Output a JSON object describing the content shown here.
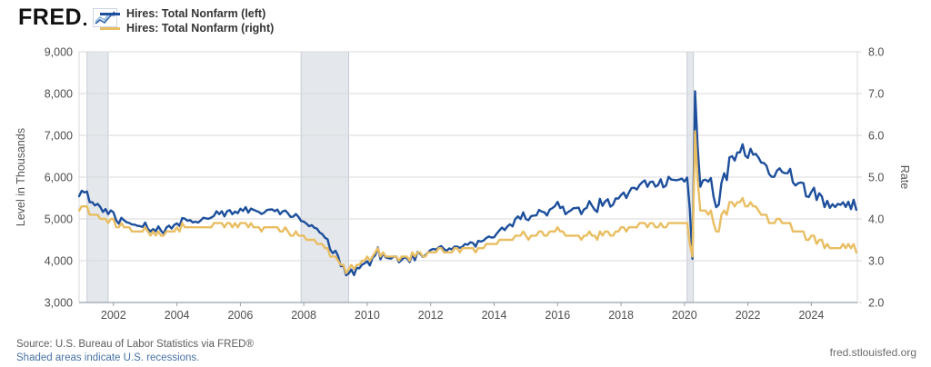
{
  "header": {
    "logo": "FRED",
    "legend": [
      {
        "label": "Hires: Total Nonfarm (left)",
        "color": "#1d4f9c",
        "axis": "left"
      },
      {
        "label": "Hires: Total Nonfarm (right)",
        "color": "#e9be62",
        "axis": "right"
      }
    ]
  },
  "chart_data": {
    "type": "line",
    "frequency": "monthly",
    "x_start": 2000.9167,
    "xlim": [
      2000.9167,
      2025.45
    ],
    "x_ticks": [
      2002,
      2004,
      2006,
      2008,
      2010,
      2012,
      2014,
      2016,
      2018,
      2020,
      2022,
      2024
    ],
    "left_axis": {
      "label": "Level in Thousands",
      "min": 3000,
      "max": 9000,
      "ticks": [
        [
          3000,
          "3,000"
        ],
        [
          4000,
          "4,000"
        ],
        [
          5000,
          "5,000"
        ],
        [
          6000,
          "6,000"
        ],
        [
          7000,
          "7,000"
        ],
        [
          8000,
          "8,000"
        ],
        [
          9000,
          "9,000"
        ]
      ]
    },
    "right_axis": {
      "label": "Rate",
      "min": 2.0,
      "max": 8.0,
      "ticks": [
        [
          2,
          "2.0"
        ],
        [
          3,
          "3.0"
        ],
        [
          4,
          "4.0"
        ],
        [
          5,
          "5.0"
        ],
        [
          6,
          "6.0"
        ],
        [
          7,
          "7.0"
        ],
        [
          8,
          "8.0"
        ]
      ]
    },
    "recessions": [
      [
        2001.167,
        2001.833
      ],
      [
        2007.917,
        2009.417
      ],
      [
        2020.083,
        2020.283
      ]
    ],
    "grid_on": true,
    "legend_position": "top-left",
    "series": [
      {
        "name": "Hires: Total Nonfarm (left)",
        "axis": "left",
        "color": "#1d4f9c",
        "values": [
          5543,
          5675,
          5633,
          5654,
          5399,
          5401,
          5323,
          5361,
          5286,
          5168,
          5236,
          5112,
          5204,
          5156,
          4969,
          4884,
          5029,
          4968,
          4921,
          4902,
          4868,
          4862,
          4838,
          4828,
          4809,
          4912,
          4766,
          4699,
          4757,
          4707,
          4822,
          4719,
          4646,
          4793,
          4839,
          4769,
          4858,
          4894,
          4832,
          5020,
          5007,
          4954,
          4972,
          4917,
          4935,
          4913,
          4963,
          5028,
          5012,
          5005,
          5032,
          5075,
          5185,
          5115,
          5184,
          5061,
          5184,
          5210,
          5113,
          5176,
          5137,
          5244,
          5192,
          5283,
          5149,
          5248,
          5218,
          5192,
          5165,
          5120,
          5147,
          5210,
          5225,
          5229,
          5185,
          5225,
          5114,
          5180,
          5203,
          5134,
          5047,
          5055,
          5118,
          5049,
          4949,
          4936,
          4886,
          4826,
          4849,
          4789,
          4765,
          4673,
          4636,
          4549,
          4512,
          4266,
          4180,
          4239,
          4110,
          3868,
          3878,
          3653,
          3695,
          3790,
          3655,
          3832,
          3818,
          3905,
          3937,
          3990,
          3887,
          4069,
          4129,
          4317,
          4035,
          4178,
          4078,
          4060,
          4049,
          4098,
          4099,
          3963,
          4020,
          4078,
          4061,
          3968,
          4148,
          4010,
          4210,
          4169,
          4093,
          4131,
          4200,
          4259,
          4282,
          4266,
          4317,
          4350,
          4280,
          4237,
          4293,
          4272,
          4339,
          4339,
          4309,
          4334,
          4400,
          4382,
          4441,
          4424,
          4337,
          4476,
          4459,
          4482,
          4543,
          4580,
          4554,
          4561,
          4650,
          4727,
          4794,
          4733,
          4817,
          4872,
          4821,
          5000,
          5061,
          4998,
          5157,
          4996,
          4970,
          5067,
          5081,
          5085,
          5216,
          5176,
          5158,
          5082,
          5222,
          5258,
          5307,
          5408,
          5261,
          5293,
          5111,
          5165,
          5203,
          5256,
          5261,
          5269,
          5116,
          5231,
          5265,
          5427,
          5317,
          5222,
          5168,
          5480,
          5312,
          5420,
          5471,
          5294,
          5342,
          5492,
          5490,
          5571,
          5633,
          5500,
          5634,
          5742,
          5745,
          5704,
          5811,
          5877,
          5921,
          5767,
          5882,
          5895,
          5771,
          5810,
          5947,
          5757,
          5797,
          6009,
          5941,
          5933,
          5927,
          5942,
          5966,
          5894,
          5991,
          5242,
          4047,
          8056,
          6700,
          5771,
          5923,
          5939,
          5892,
          5979,
          5539,
          5280,
          5341,
          5858,
          6093,
          5930,
          6471,
          6503,
          6396,
          6592,
          6592,
          6786,
          6512,
          6461,
          6678,
          6536,
          6556,
          6468,
          6350,
          6339,
          6276,
          6076,
          6006,
          6011,
          6156,
          6211,
          6122,
          6095,
          6093,
          6197,
          5875,
          5800,
          5854,
          5871,
          5859,
          5541,
          5525,
          5645,
          5747,
          5453,
          5615,
          5537,
          5283,
          5432,
          5265,
          5353,
          5282,
          5361,
          5338,
          5398,
          5288,
          5411,
          5235,
          5458,
          5217
        ]
      },
      {
        "name": "Hires: Total Nonfarm (right)",
        "axis": "right",
        "color": "#e9be62",
        "values": [
          4.2,
          4.3,
          4.3,
          4.3,
          4.1,
          4.1,
          4.1,
          4.1,
          4.0,
          4.0,
          4.0,
          3.9,
          4.0,
          4.0,
          3.8,
          3.8,
          3.9,
          3.8,
          3.8,
          3.8,
          3.7,
          3.7,
          3.7,
          3.7,
          3.7,
          3.8,
          3.7,
          3.6,
          3.7,
          3.6,
          3.7,
          3.6,
          3.6,
          3.7,
          3.7,
          3.7,
          3.7,
          3.8,
          3.7,
          3.9,
          3.8,
          3.8,
          3.8,
          3.8,
          3.8,
          3.8,
          3.8,
          3.8,
          3.8,
          3.8,
          3.8,
          3.9,
          3.9,
          3.9,
          3.9,
          3.8,
          3.9,
          3.9,
          3.8,
          3.9,
          3.8,
          3.9,
          3.9,
          3.9,
          3.8,
          3.9,
          3.8,
          3.8,
          3.8,
          3.7,
          3.8,
          3.8,
          3.8,
          3.8,
          3.8,
          3.8,
          3.7,
          3.7,
          3.8,
          3.7,
          3.6,
          3.6,
          3.7,
          3.6,
          3.6,
          3.6,
          3.5,
          3.5,
          3.5,
          3.5,
          3.4,
          3.4,
          3.4,
          3.3,
          3.3,
          3.1,
          3.1,
          3.1,
          3.0,
          2.9,
          2.9,
          2.7,
          2.8,
          2.9,
          2.8,
          2.9,
          2.9,
          3.0,
          3.0,
          3.1,
          3.0,
          3.1,
          3.2,
          3.3,
          3.1,
          3.2,
          3.1,
          3.1,
          3.1,
          3.1,
          3.1,
          3.0,
          3.1,
          3.1,
          3.1,
          3.0,
          3.2,
          3.1,
          3.2,
          3.2,
          3.1,
          3.1,
          3.2,
          3.2,
          3.2,
          3.2,
          3.3,
          3.3,
          3.2,
          3.2,
          3.2,
          3.2,
          3.3,
          3.3,
          3.2,
          3.3,
          3.3,
          3.3,
          3.3,
          3.3,
          3.2,
          3.3,
          3.3,
          3.3,
          3.4,
          3.4,
          3.4,
          3.4,
          3.4,
          3.5,
          3.5,
          3.5,
          3.5,
          3.5,
          3.5,
          3.6,
          3.6,
          3.6,
          3.7,
          3.6,
          3.5,
          3.6,
          3.6,
          3.6,
          3.7,
          3.7,
          3.6,
          3.6,
          3.7,
          3.7,
          3.7,
          3.8,
          3.7,
          3.7,
          3.6,
          3.6,
          3.6,
          3.6,
          3.6,
          3.6,
          3.5,
          3.6,
          3.6,
          3.7,
          3.6,
          3.6,
          3.5,
          3.7,
          3.6,
          3.7,
          3.7,
          3.6,
          3.6,
          3.7,
          3.7,
          3.8,
          3.8,
          3.7,
          3.8,
          3.8,
          3.8,
          3.8,
          3.9,
          3.9,
          3.9,
          3.8,
          3.9,
          3.9,
          3.8,
          3.8,
          3.9,
          3.8,
          3.8,
          3.9,
          3.9,
          3.9,
          3.9,
          3.9,
          3.9,
          3.9,
          3.9,
          3.4,
          3.1,
          6.1,
          4.9,
          4.2,
          4.2,
          4.2,
          4.1,
          4.2,
          3.9,
          3.7,
          3.7,
          4.1,
          4.2,
          4.1,
          4.4,
          4.4,
          4.3,
          4.4,
          4.4,
          4.5,
          4.3,
          4.3,
          4.4,
          4.3,
          4.3,
          4.2,
          4.1,
          4.1,
          4.1,
          3.9,
          3.9,
          3.9,
          4.0,
          4.0,
          3.9,
          3.9,
          3.9,
          3.9,
          3.7,
          3.7,
          3.7,
          3.7,
          3.7,
          3.5,
          3.5,
          3.6,
          3.6,
          3.4,
          3.5,
          3.5,
          3.3,
          3.4,
          3.3,
          3.3,
          3.3,
          3.3,
          3.3,
          3.4,
          3.3,
          3.4,
          3.3,
          3.4,
          3.2
        ]
      }
    ],
    "styles": {
      "grid": "#d9d9d9",
      "axis_line": "#96a1ad",
      "band_fill": "#e4e8ed",
      "band_edge": "#c6ccd4",
      "tick_text": "#4d4d4d",
      "axis_title": "#555555"
    }
  },
  "footer": {
    "source": "Source: U.S. Bureau of Labor Statistics via FRED®",
    "recession_note": "Shaded areas indicate U.S. recessions.",
    "site": "fred.stlouisfed.org"
  }
}
